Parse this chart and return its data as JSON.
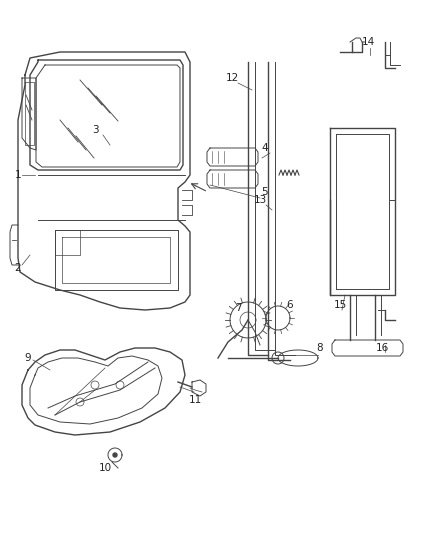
{
  "bg_color": "#ffffff",
  "fig_width": 4.38,
  "fig_height": 5.33,
  "dpi": 100,
  "line_color": "#444444",
  "label_color": "#222222",
  "label_fontsize": 7.5
}
